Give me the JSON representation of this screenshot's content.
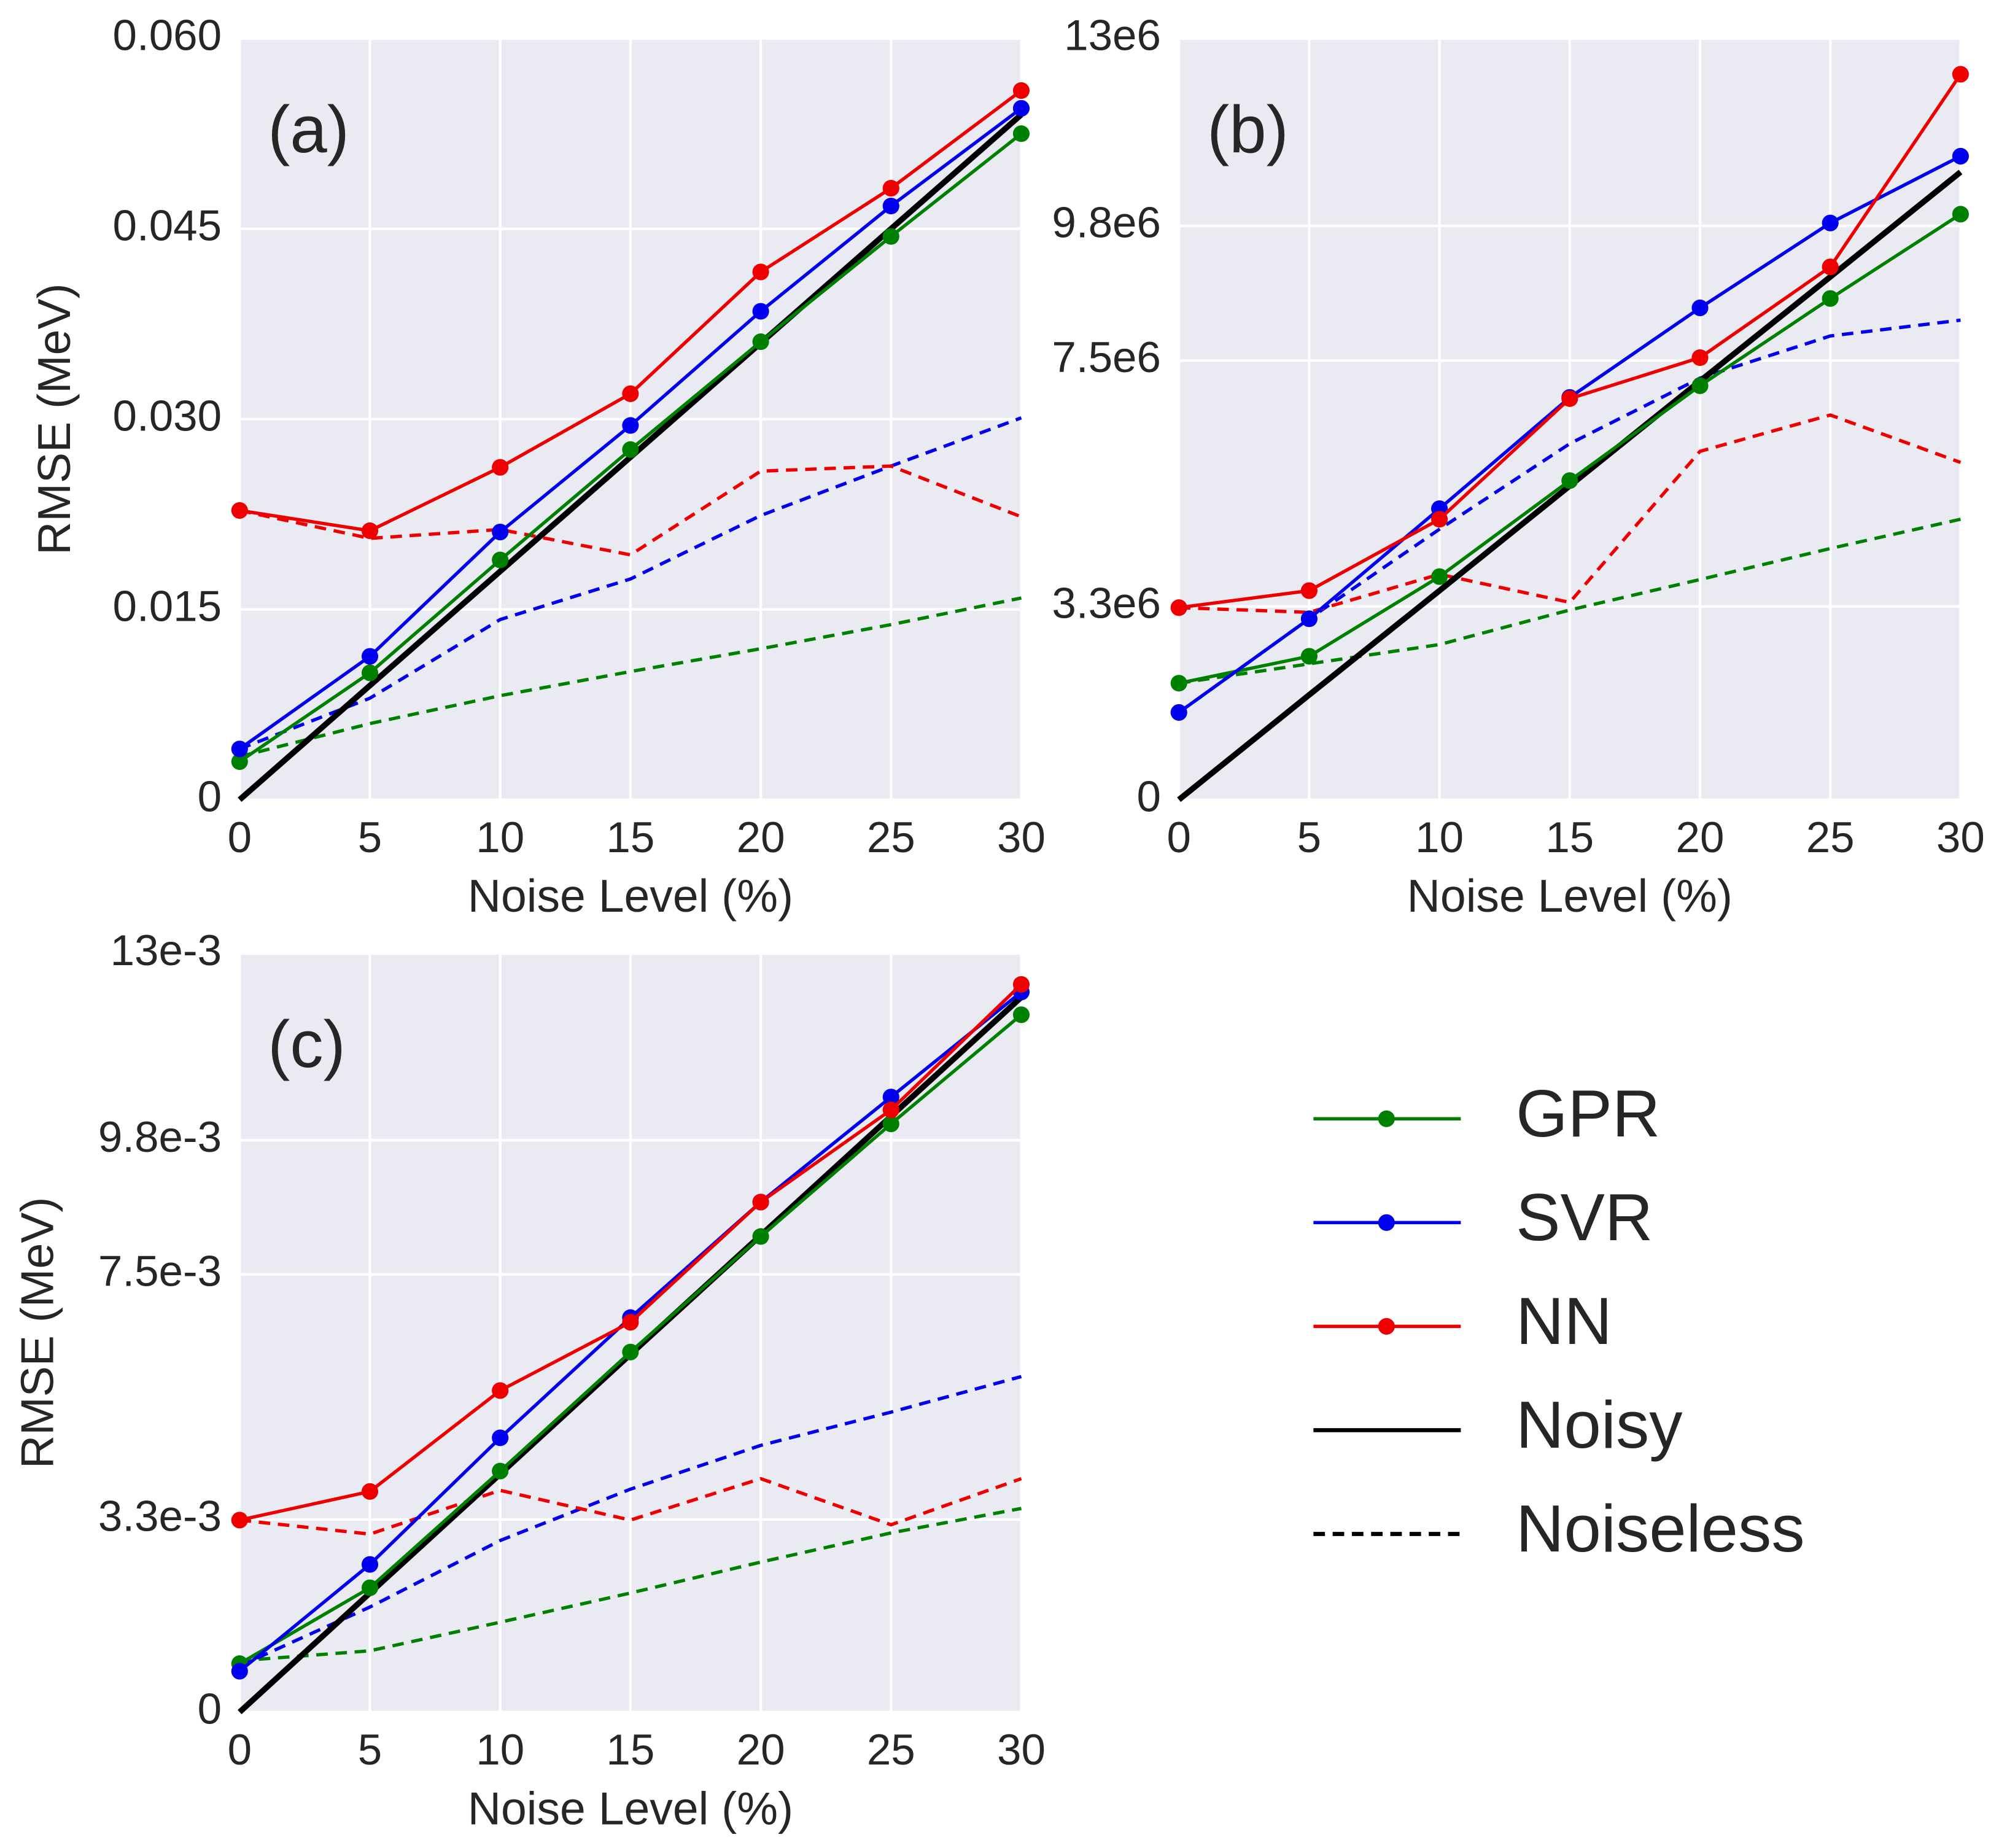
{
  "legend": [
    {
      "name": "GPR",
      "color": "#008000",
      "marker": true,
      "dashed": false
    },
    {
      "name": "SVR",
      "color": "#0000ee",
      "marker": true,
      "dashed": false
    },
    {
      "name": "NN",
      "color": "#ee0000",
      "marker": true,
      "dashed": false
    },
    {
      "name": "Noisy",
      "color": "#000000",
      "marker": false,
      "dashed": false
    },
    {
      "name": "Noiseless",
      "color": "#000000",
      "marker": false,
      "dashed": true
    }
  ],
  "chart_data": [
    {
      "type": "line",
      "panel_label": "(a)",
      "x_label": "Noise Level (%)",
      "y_label": "RMSE (MeV)",
      "x": [
        0,
        5,
        10,
        15,
        20,
        25,
        30
      ],
      "xlim": [
        0,
        30
      ],
      "xticks": [
        0,
        5,
        10,
        15,
        20,
        25,
        30
      ],
      "ylim": [
        0,
        0.06
      ],
      "yticks": [
        0,
        0.015,
        {
          "value": 0.03,
          "label": "0.030"
        },
        0.045,
        {
          "value": 0.06,
          "label": "0.060"
        }
      ],
      "grid": true,
      "noisy": {
        "color": "#000000",
        "values": [
          0,
          0.009,
          0.018,
          0.027,
          0.036,
          0.045,
          0.054
        ]
      },
      "series": [
        {
          "color": "#008000",
          "values": [
            0.003,
            0.01,
            0.0189,
            0.0276,
            0.0361,
            0.0444,
            0.0525
          ],
          "noiseless": [
            0.0034,
            0.006,
            0.0082,
            0.0101,
            0.0119,
            0.0138,
            0.0159
          ]
        },
        {
          "color": "#0000ee",
          "values": [
            0.004,
            0.0113,
            0.0211,
            0.0295,
            0.0385,
            0.0468,
            0.0545
          ],
          "noiseless": [
            0.004,
            0.008,
            0.0142,
            0.0174,
            0.0224,
            0.0263,
            0.0301
          ]
        },
        {
          "color": "#ee0000",
          "values": [
            0.0228,
            0.0212,
            0.0262,
            0.032,
            0.0416,
            0.0482,
            0.0559
          ],
          "noiseless": [
            0.0228,
            0.0206,
            0.0213,
            0.0193,
            0.0259,
            0.0263,
            0.0223
          ]
        }
      ]
    },
    {
      "type": "line",
      "panel_label": "(b)",
      "x_label": "Noise Level (%)",
      "x": [
        0,
        5,
        10,
        15,
        20,
        25,
        30
      ],
      "xlim": [
        0,
        30
      ],
      "xticks": [
        0,
        5,
        10,
        15,
        20,
        25,
        30
      ],
      "ylim": [
        0,
        13000000
      ],
      "yticks": [
        0,
        {
          "value": 3300000,
          "label": "3.3e6"
        },
        {
          "value": 7500000,
          "label": "7.5e6"
        },
        {
          "value": 9800000,
          "label": "9.8e6"
        },
        {
          "value": 13000000,
          "label": "13e6"
        }
      ],
      "grid": true,
      "noisy": {
        "color": "#000000",
        "values": [
          0,
          1790000,
          3570000,
          5360000,
          7150000,
          8930000,
          10720000
        ]
      },
      "series": [
        {
          "color": "#008000",
          "values": [
            1990000,
            2450000,
            3810000,
            5450000,
            7070000,
            8560000,
            10000000
          ],
          "noiseless": [
            1990000,
            2320000,
            2650000,
            3240000,
            3760000,
            4290000,
            4790000
          ]
        },
        {
          "color": "#0000ee",
          "values": [
            1490000,
            3090000,
            4970000,
            6870000,
            8400000,
            9850000,
            10990000
          ],
          "noiseless": [
            1490000,
            3090000,
            4620000,
            6080000,
            7200000,
            7920000,
            8190000
          ]
        },
        {
          "color": "#ee0000",
          "values": [
            3280000,
            3570000,
            4790000,
            6850000,
            7550000,
            9100000,
            12390000
          ],
          "noiseless": [
            3280000,
            3200000,
            3850000,
            3370000,
            5950000,
            6570000,
            5760000
          ]
        }
      ]
    },
    {
      "type": "line",
      "panel_label": "(c)",
      "x_label": "Noise Level (%)",
      "y_label": "RMSE (MeV)",
      "x": [
        0,
        5,
        10,
        15,
        20,
        25,
        30
      ],
      "xlim": [
        0,
        30
      ],
      "xticks": [
        0,
        5,
        10,
        15,
        20,
        25,
        30
      ],
      "ylim": [
        0,
        0.013
      ],
      "yticks": [
        0,
        {
          "value": 0.0033,
          "label": "3.3e-3"
        },
        {
          "value": 0.0075,
          "label": "7.5e-3"
        },
        {
          "value": 0.0098,
          "label": "9.8e-3"
        },
        {
          "value": 0.013,
          "label": "13e-3"
        }
      ],
      "grid": true,
      "noisy": {
        "color": "#000000",
        "values": [
          0,
          0.00204,
          0.00408,
          0.00613,
          0.00817,
          0.01021,
          0.01225
        ]
      },
      "series": [
        {
          "color": "#008000",
          "values": [
            0.00083,
            0.00213,
            0.00413,
            0.00617,
            0.00815,
            0.01008,
            0.01195
          ],
          "noiseless": [
            0.00088,
            0.00105,
            0.00154,
            0.00204,
            0.00257,
            0.00307,
            0.00349
          ]
        },
        {
          "color": "#0000ee",
          "values": [
            0.0007,
            0.00253,
            0.0047,
            0.00676,
            0.00874,
            0.01054,
            0.01234
          ],
          "noiseless": [
            0.00079,
            0.0018,
            0.00294,
            0.00382,
            0.00457,
            0.00514,
            0.00575
          ]
        },
        {
          "color": "#ee0000",
          "values": [
            0.00329,
            0.00378,
            0.00551,
            0.00668,
            0.00874,
            0.01032,
            0.01247
          ],
          "noiseless": [
            0.00329,
            0.00305,
            0.0038,
            0.00329,
            0.004,
            0.00321,
            0.004
          ]
        }
      ]
    }
  ]
}
